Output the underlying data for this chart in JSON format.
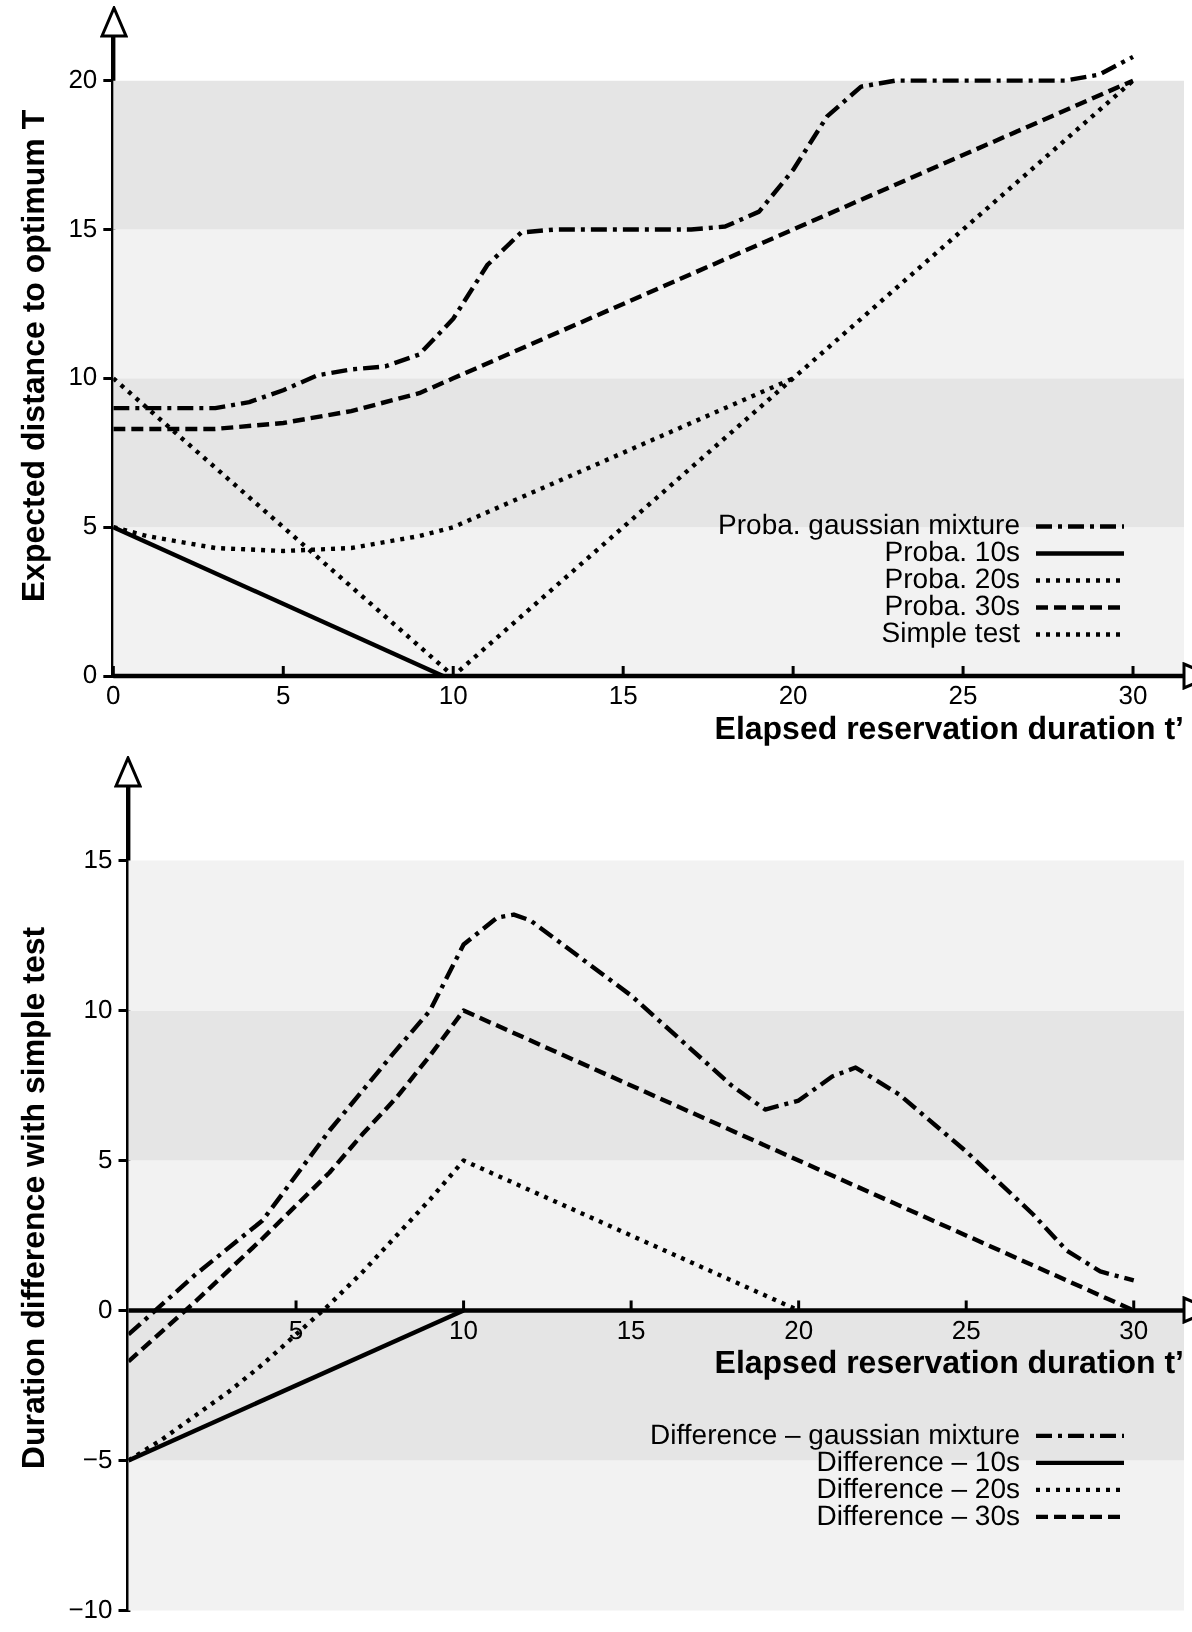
{
  "chart_data": [
    {
      "type": "line",
      "ylabel": "Expected distance to optimum T",
      "xlabel": "Elapsed reservation duration t’",
      "xlim": [
        0,
        31.5
      ],
      "ylim": [
        0,
        21.5
      ],
      "xticks": [
        0,
        5,
        10,
        15,
        20,
        25,
        30
      ],
      "yticks": [
        0,
        5,
        10,
        15,
        20
      ],
      "legend": "bottom right",
      "bands": [
        {
          "axis": "y",
          "from": 0,
          "to": 5,
          "color": "#f2f2f2"
        },
        {
          "axis": "y",
          "from": 5,
          "to": 10,
          "color": "#e5e5e5"
        },
        {
          "axis": "y",
          "from": 10,
          "to": 15,
          "color": "#f2f2f2"
        },
        {
          "axis": "y",
          "from": 15,
          "to": 20,
          "color": "#e5e5e5"
        }
      ],
      "series": [
        {
          "name": "Proba. gaussian mixture",
          "color": "#000000",
          "line_style": "dashdot",
          "x": [
            0,
            3,
            4,
            5,
            6,
            7,
            8,
            9,
            10,
            11,
            12,
            13,
            17,
            18,
            19,
            20,
            21,
            22,
            23,
            28,
            29,
            30
          ],
          "values": [
            9,
            9,
            9.2,
            9.6,
            10.1,
            10.3,
            10.4,
            10.8,
            12,
            13.8,
            14.9,
            15,
            15,
            15.1,
            15.6,
            17,
            18.8,
            19.8,
            20,
            20,
            20.2,
            20.8
          ]
        },
        {
          "name": "Proba. 10s",
          "color": "#000000",
          "line_style": "solid",
          "x": [
            0,
            9.7
          ],
          "values": [
            5,
            0
          ]
        },
        {
          "name": "Proba. 20s",
          "color": "#000000",
          "line_style": "dotted",
          "x": [
            0,
            1,
            3,
            5,
            7,
            9,
            10,
            15,
            20
          ],
          "values": [
            5,
            4.7,
            4.3,
            4.2,
            4.3,
            4.7,
            5,
            7.5,
            10
          ]
        },
        {
          "name": "Proba. 30s",
          "color": "#000000",
          "line_style": "dashed",
          "x": [
            0,
            3,
            5,
            7,
            9,
            10,
            20,
            30
          ],
          "values": [
            8.3,
            8.3,
            8.5,
            8.9,
            9.5,
            10,
            15,
            20
          ]
        },
        {
          "name": "Simple test",
          "color": "#000000",
          "line_style": "dotted",
          "x": [
            0,
            10,
            30
          ],
          "values": [
            10,
            0,
            20
          ]
        }
      ]
    },
    {
      "type": "line",
      "ylabel": "Duration difference with simple test",
      "xlabel": "Elapsed reservation duration t’",
      "xlim": [
        0,
        31.5
      ],
      "ylim": [
        -10,
        17.5
      ],
      "xticks": [
        5,
        10,
        15,
        20,
        25,
        30
      ],
      "yticks": [
        {
          "value": -10,
          "label": "−10"
        },
        {
          "value": -5,
          "label": "−5"
        },
        0,
        5,
        10,
        15
      ],
      "legend": "bottom right",
      "bands": [
        {
          "axis": "y",
          "from": -10,
          "to": -5,
          "color": "#f2f2f2"
        },
        {
          "axis": "y",
          "from": -5,
          "to": 0,
          "color": "#e5e5e5"
        },
        {
          "axis": "y",
          "from": 0,
          "to": 5,
          "color": "#f2f2f2"
        },
        {
          "axis": "y",
          "from": 5,
          "to": 10,
          "color": "#e5e5e5"
        },
        {
          "axis": "y",
          "from": 10,
          "to": 15,
          "color": "#f2f2f2"
        }
      ],
      "series": [
        {
          "name": "Difference – gaussian mixture",
          "color": "#000000",
          "line_style": "dashdot",
          "x": [
            0,
            2,
            4,
            6,
            8,
            9,
            10,
            11,
            11.5,
            12,
            15,
            18,
            19,
            20,
            21,
            21.7,
            23,
            25,
            27,
            28,
            29,
            30
          ],
          "values": [
            -0.8,
            1.2,
            3,
            6,
            8.7,
            10,
            12.2,
            13.1,
            13.2,
            13,
            10.5,
            7.5,
            6.7,
            7,
            7.8,
            8.1,
            7.2,
            5.3,
            3.2,
            2,
            1.3,
            1
          ]
        },
        {
          "name": "Difference – 10s",
          "color": "#000000",
          "line_style": "solid",
          "x": [
            0,
            10
          ],
          "values": [
            -5,
            0
          ]
        },
        {
          "name": "Difference – 20s",
          "color": "#000000",
          "line_style": "dotted",
          "x": [
            0,
            1,
            2,
            3,
            4,
            5,
            6,
            7,
            8,
            9,
            10,
            20
          ],
          "values": [
            -5,
            -4.3,
            -3.5,
            -2.7,
            -1.8,
            -0.8,
            0.2,
            1.3,
            2.5,
            3.7,
            5,
            0
          ]
        },
        {
          "name": "Difference – 30s",
          "color": "#000000",
          "line_style": "dashed",
          "x": [
            0,
            2,
            4,
            5,
            6,
            7,
            8,
            9,
            10,
            20,
            30
          ],
          "values": [
            -1.7,
            0.3,
            2.4,
            3.5,
            4.6,
            5.9,
            7.1,
            8.5,
            10,
            5,
            0
          ]
        }
      ]
    }
  ]
}
